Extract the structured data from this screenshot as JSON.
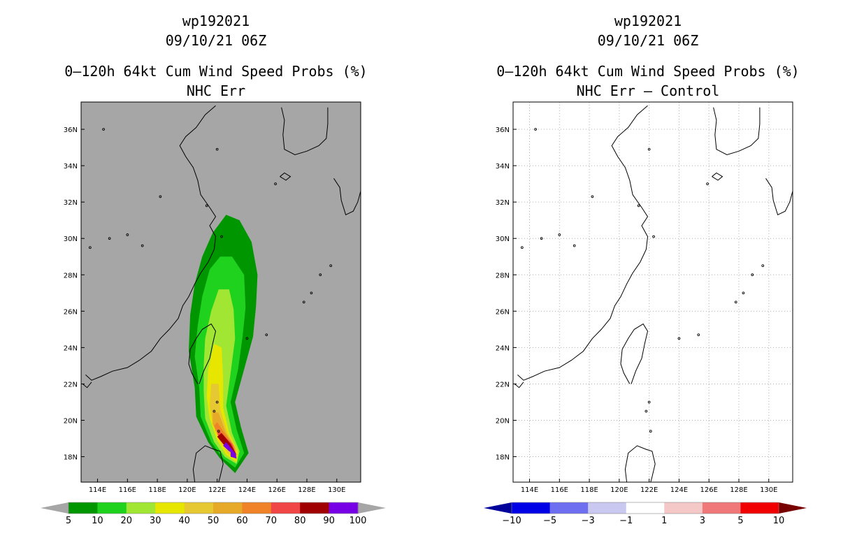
{
  "panels": [
    {
      "title1": "wp192021",
      "title2": "09/10/21 06Z",
      "title3": "0–120h 64kt Cum Wind Speed Probs (%)",
      "title4": "NHC Err",
      "background": "#a6a6a6",
      "colorbar": {
        "labels": [
          "5",
          "10",
          "20",
          "30",
          "40",
          "50",
          "60",
          "70",
          "80",
          "90",
          "100"
        ],
        "colors": [
          "#009600",
          "#1ed21e",
          "#a0e632",
          "#e6e600",
          "#e6c832",
          "#e6aa28",
          "#f08228",
          "#f04646",
          "#a00000",
          "#7800e6"
        ],
        "under": "#a6a6a6",
        "over": "#a6a6a6"
      }
    },
    {
      "title1": "wp192021",
      "title2": "09/10/21 06Z",
      "title3": "0–120h 64kt Cum Wind Speed Probs (%)",
      "title4": "NHC Err – Control",
      "background": "#ffffff",
      "colorbar": {
        "labels": [
          "−10",
          "−5",
          "−3",
          "−1",
          "1",
          "3",
          "5",
          "10"
        ],
        "colors": [
          "#0000e6",
          "#6e6ef0",
          "#c8c8f0",
          "#ffffff",
          "#f5c8c8",
          "#f07878",
          "#f00000"
        ],
        "under": "#00009a",
        "over": "#780000"
      }
    }
  ],
  "chart_data": [
    {
      "type": "heatmap",
      "title": "wp192021 09/10/21 06Z 0–120h 64kt Cum Wind Speed Probs (%) NHC Err",
      "x_ticks": [
        "114E",
        "116E",
        "118E",
        "120E",
        "122E",
        "124E",
        "126E",
        "128E",
        "130E"
      ],
      "y_ticks": [
        "18N",
        "20N",
        "22N",
        "24N",
        "26N",
        "28N",
        "30N",
        "32N",
        "34N",
        "36N"
      ],
      "xlim": [
        112.9,
        131.6
      ],
      "ylim": [
        16.6,
        37.5
      ],
      "levels": [
        5,
        10,
        20,
        30,
        40,
        50,
        60,
        70,
        80,
        90,
        100
      ],
      "contours": [
        {
          "level": 5,
          "points": [
            [
              123.2,
              17.1
            ],
            [
              124.1,
              18.2
            ],
            [
              123.6,
              19.6
            ],
            [
              123.2,
              21.0
            ],
            [
              123.8,
              22.8
            ],
            [
              124.4,
              24.6
            ],
            [
              124.6,
              26.3
            ],
            [
              124.7,
              28.0
            ],
            [
              124.3,
              29.8
            ],
            [
              123.5,
              31.0
            ],
            [
              122.6,
              31.3
            ],
            [
              121.7,
              30.3
            ],
            [
              121.0,
              29.0
            ],
            [
              120.5,
              27.5
            ],
            [
              120.2,
              25.8
            ],
            [
              120.1,
              23.8
            ],
            [
              120.5,
              21.8
            ],
            [
              120.6,
              20.2
            ],
            [
              121.4,
              18.8
            ],
            [
              122.2,
              17.9
            ]
          ]
        },
        {
          "level": 10,
          "points": [
            [
              123.2,
              17.4
            ],
            [
              123.8,
              18.2
            ],
            [
              123.3,
              19.5
            ],
            [
              122.9,
              21.0
            ],
            [
              123.4,
              22.8
            ],
            [
              123.7,
              24.6
            ],
            [
              123.9,
              26.2
            ],
            [
              123.8,
              28.0
            ],
            [
              123.0,
              29.0
            ],
            [
              122.2,
              29.0
            ],
            [
              121.5,
              28.3
            ],
            [
              121.0,
              26.8
            ],
            [
              120.7,
              25.2
            ],
            [
              120.5,
              23.5
            ],
            [
              120.8,
              21.8
            ],
            [
              120.9,
              20.2
            ],
            [
              121.6,
              18.8
            ],
            [
              122.4,
              17.9
            ]
          ]
        },
        {
          "level": 20,
          "points": [
            [
              123.3,
              17.6
            ],
            [
              123.5,
              18.3
            ],
            [
              123.0,
              19.3
            ],
            [
              122.6,
              20.8
            ],
            [
              122.9,
              22.6
            ],
            [
              123.2,
              24.5
            ],
            [
              123.1,
              26.1
            ],
            [
              122.8,
              27.2
            ],
            [
              122.1,
              27.2
            ],
            [
              121.6,
              26.0
            ],
            [
              121.2,
              24.5
            ],
            [
              121.1,
              23.0
            ],
            [
              121.1,
              21.6
            ],
            [
              121.2,
              20.1
            ],
            [
              121.8,
              18.8
            ],
            [
              122.5,
              18.0
            ]
          ]
        },
        {
          "level": 30,
          "points": [
            [
              123.3,
              17.7
            ],
            [
              123.4,
              18.3
            ],
            [
              122.8,
              19.3
            ],
            [
              122.4,
              20.7
            ],
            [
              122.4,
              22.3
            ],
            [
              122.3,
              24.0
            ],
            [
              121.8,
              24.2
            ],
            [
              121.4,
              22.8
            ],
            [
              121.3,
              21.3
            ],
            [
              121.5,
              20.1
            ],
            [
              122.0,
              18.9
            ],
            [
              122.6,
              18.1
            ]
          ]
        },
        {
          "level": 40,
          "points": [
            [
              123.3,
              17.8
            ],
            [
              123.3,
              18.4
            ],
            [
              122.7,
              19.3
            ],
            [
              122.2,
              20.6
            ],
            [
              122.1,
              22.0
            ],
            [
              121.6,
              22.0
            ],
            [
              121.5,
              20.8
            ],
            [
              121.7,
              19.8
            ],
            [
              122.2,
              18.8
            ],
            [
              122.7,
              18.2
            ]
          ]
        },
        {
          "level": 50,
          "points": [
            [
              123.3,
              17.9
            ],
            [
              123.2,
              18.5
            ],
            [
              122.6,
              19.3
            ],
            [
              122.1,
              20.4
            ],
            [
              121.7,
              20.5
            ],
            [
              121.7,
              19.8
            ],
            [
              122.2,
              18.9
            ],
            [
              122.8,
              18.3
            ]
          ]
        },
        {
          "level": 60,
          "points": [
            [
              123.3,
              18.0
            ],
            [
              123.1,
              18.6
            ],
            [
              122.5,
              19.3
            ],
            [
              122.0,
              19.9
            ],
            [
              121.8,
              19.7
            ],
            [
              122.2,
              18.9
            ],
            [
              122.8,
              18.4
            ]
          ]
        },
        {
          "level": 70,
          "points": [
            [
              123.3,
              18.0
            ],
            [
              123.0,
              18.7
            ],
            [
              122.4,
              19.2
            ],
            [
              122.0,
              19.5
            ],
            [
              122.1,
              19.0
            ],
            [
              122.6,
              18.5
            ]
          ]
        },
        {
          "level": 80,
          "points": [
            [
              123.3,
              18.1
            ],
            [
              122.9,
              18.7
            ],
            [
              122.3,
              19.3
            ],
            [
              122.0,
              19.1
            ],
            [
              122.6,
              18.5
            ]
          ]
        },
        {
          "level": 90,
          "points": [
            [
              123.3,
              18.1
            ],
            [
              123.0,
              18.4
            ],
            [
              122.6,
              18.8
            ],
            [
              122.4,
              18.6
            ],
            [
              122.8,
              18.3
            ]
          ]
        },
        {
          "level": 100,
          "points": [
            [
              123.3,
              17.9
            ],
            [
              123.2,
              18.2
            ],
            [
              122.9,
              18.3
            ],
            [
              122.9,
              18.0
            ]
          ]
        }
      ]
    },
    {
      "type": "heatmap",
      "title": "wp192021 09/10/21 06Z 0–120h 64kt Cum Wind Speed Probs (%) NHC Err – Control",
      "x_ticks": [
        "114E",
        "116E",
        "118E",
        "120E",
        "122E",
        "124E",
        "126E",
        "128E",
        "130E"
      ],
      "y_ticks": [
        "18N",
        "20N",
        "22N",
        "24N",
        "26N",
        "28N",
        "30N",
        "32N",
        "34N",
        "36N"
      ],
      "xlim": [
        112.9,
        131.6
      ],
      "ylim": [
        16.6,
        37.5
      ],
      "levels": [
        -10,
        -5,
        -3,
        -1,
        1,
        3,
        5,
        10
      ],
      "grid": true,
      "contours": []
    }
  ]
}
